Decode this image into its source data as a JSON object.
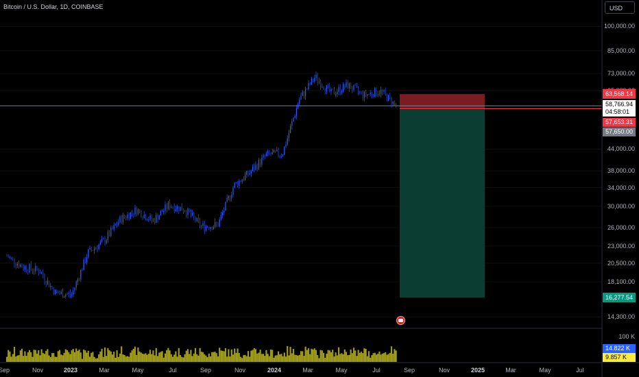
{
  "header": {
    "symbol_label": "Bitcoin / U.S. Dollar, 1D, COINBASE",
    "currency_button": "USD"
  },
  "price_axis": {
    "ticks": [
      "100,000.00",
      "85,000.00",
      "73,000.00",
      "65,000.00",
      "44,000.00",
      "38,000.00",
      "34,000.00",
      "30,000.00",
      "26,000.00",
      "23,000.00",
      "20,500.00",
      "18,100.00",
      "14,300.00"
    ],
    "tick_values": [
      100000,
      85000,
      73000,
      65000,
      44000,
      38000,
      34000,
      30000,
      26000,
      23000,
      20500,
      18100,
      14300
    ],
    "scale": "log"
  },
  "volume_axis": {
    "ticks": [
      "100 K"
    ]
  },
  "time_axis": {
    "ticks": [
      {
        "label": "Sep",
        "bold": false
      },
      {
        "label": "Nov",
        "bold": false
      },
      {
        "label": "2023",
        "bold": true
      },
      {
        "label": "Mar",
        "bold": false
      },
      {
        "label": "May",
        "bold": false
      },
      {
        "label": "Jul",
        "bold": false
      },
      {
        "label": "Sep",
        "bold": false
      },
      {
        "label": "Nov",
        "bold": false
      },
      {
        "label": "2024",
        "bold": true
      },
      {
        "label": "Mar",
        "bold": false
      },
      {
        "label": "May",
        "bold": false
      },
      {
        "label": "Jul",
        "bold": false
      },
      {
        "label": "Sep",
        "bold": false
      },
      {
        "label": "Nov",
        "bold": false
      },
      {
        "label": "2025",
        "bold": true
      },
      {
        "label": "Mar",
        "bold": false
      },
      {
        "label": "May",
        "bold": false
      },
      {
        "label": "Jul",
        "bold": false
      }
    ]
  },
  "price_tags": {
    "stop": {
      "label": "63,568.14",
      "value": 63568.14,
      "bg": "#f23645",
      "fg": "#ffffff"
    },
    "current": {
      "label": "58,766.94",
      "countdown": "04:58:01",
      "value": 58766.94,
      "bg": "#ffffff",
      "fg": "#000000"
    },
    "entry": {
      "label": "57,653.31",
      "value": 57653.31,
      "bg": "#f23645",
      "fg": "#ffffff"
    },
    "entry_alt": {
      "label": "57,650.00",
      "value": 57650,
      "bg": "#787b86",
      "fg": "#ffffff"
    },
    "target": {
      "label": "16,277.54",
      "value": 16277.54,
      "bg": "#089981",
      "fg": "#ffffff"
    }
  },
  "volume_tags": {
    "vol_blue": {
      "label": "14.822 K",
      "bg": "#2962ff",
      "fg": "#ffffff"
    },
    "vol_yellow": {
      "label": "9.857 K",
      "bg": "#ffeb3b",
      "fg": "#000000"
    }
  },
  "colors": {
    "candles": "#2962ff",
    "volume": "#9e9a1c",
    "loss_zone": "#7a1c22",
    "profit_zone": "#0b3d33"
  },
  "chart_data": {
    "type": "line",
    "title": "Bitcoin / U.S. Dollar, 1D, COINBASE",
    "y_scale": "log",
    "ylim": [
      13500,
      115000
    ],
    "x": [
      "2022-08",
      "2022-09",
      "2022-10",
      "2022-11",
      "2022-12",
      "2023-01",
      "2023-02",
      "2023-03",
      "2023-04",
      "2023-05",
      "2023-06",
      "2023-07",
      "2023-08",
      "2023-09",
      "2023-10",
      "2023-11",
      "2023-12",
      "2024-01",
      "2024-02",
      "2024-03",
      "2024-04",
      "2024-05",
      "2024-06",
      "2024-07",
      "2024-08"
    ],
    "series": [
      {
        "values": [
          21500,
          20000,
          19500,
          16800,
          16600,
          22000,
          23800,
          27500,
          29300,
          27200,
          30300,
          29300,
          26200,
          26500,
          34500,
          37700,
          42300,
          42800,
          61000,
          71300,
          63800,
          67500,
          63000,
          65000,
          58800
        ]
      }
    ],
    "position": {
      "entry": 57653.31,
      "stop": 63568.14,
      "target": 16277.54,
      "current": 58766.94
    }
  }
}
